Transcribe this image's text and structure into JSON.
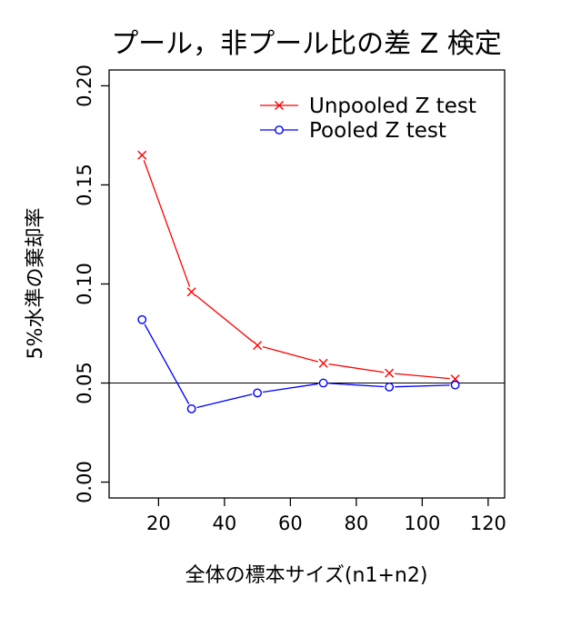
{
  "chart_data": {
    "type": "line",
    "title": "プール，非プール比の差 Z 検定",
    "xlabel": "全体の標本サイズ(n1+n2)",
    "ylabel": "5%水準の棄却率",
    "xlim": [
      5,
      125
    ],
    "ylim": [
      -0.008,
      0.208
    ],
    "xticks": [
      20,
      40,
      60,
      80,
      100,
      120
    ],
    "yticks": [
      0.0,
      0.05,
      0.1,
      0.15,
      0.2
    ],
    "xtick_labels": [
      "20",
      "40",
      "60",
      "80",
      "100",
      "120"
    ],
    "ytick_labels": [
      "0.00",
      "0.05",
      "0.10",
      "0.15",
      "0.20"
    ],
    "reference_line": 0.05,
    "grid": false,
    "legend_position": "top-right",
    "x": [
      15,
      30,
      50,
      70,
      90,
      110
    ],
    "series": [
      {
        "name": "Unpooled Z test",
        "color": "#ff0000",
        "marker": "cross",
        "values": [
          0.165,
          0.096,
          0.069,
          0.06,
          0.055,
          0.052
        ]
      },
      {
        "name": "Pooled Z test",
        "color": "#0000ff",
        "marker": "circle",
        "values": [
          0.082,
          0.037,
          0.045,
          0.05,
          0.048,
          0.049
        ]
      }
    ]
  }
}
